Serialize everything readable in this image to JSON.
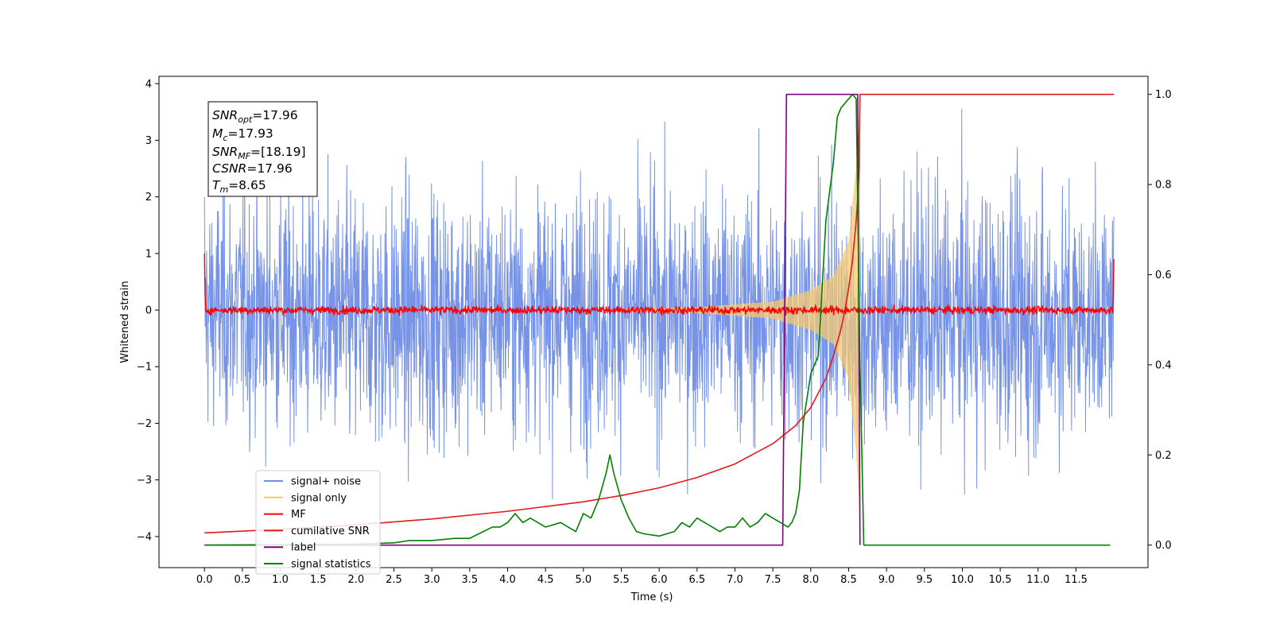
{
  "chart_data": {
    "type": "line",
    "xlabel": "Time (s)",
    "ylabel": "Whitened strain",
    "xlim": [
      -0.6,
      12.45
    ],
    "ylim": [
      -4.55,
      4.13
    ],
    "y2lim": [
      -0.05,
      1.04
    ],
    "x_ticks": [
      "0.0",
      "0.5",
      "1.0",
      "1.5",
      "2.0",
      "2.5",
      "3.0",
      "3.5",
      "4.0",
      "4.5",
      "5.0",
      "5.5",
      "6.0",
      "6.5",
      "7.0",
      "7.5",
      "8.0",
      "8.5",
      "9.0",
      "9.5",
      "10.0",
      "10.5",
      "11.0",
      "11.5"
    ],
    "y_ticks": [
      "4",
      "3",
      "2",
      "1",
      "0",
      "−1",
      "−2",
      "−3",
      "−4"
    ],
    "y2_ticks": [
      "1.0",
      "0.8",
      "0.6",
      "0.4",
      "0.2",
      "0.0"
    ],
    "legend_position": "lower-left",
    "info_box": {
      "snr_opt": {
        "base": "SNR",
        "sub": "opt",
        "value": "=17.96"
      },
      "mc": {
        "base": "M",
        "sub": "c",
        "value": "=17.93"
      },
      "snr_mf": {
        "base": "SNR",
        "sub": "MF",
        "value": "=[18.19]"
      },
      "csnr": {
        "base": "CSNR",
        "value": "=17.96"
      },
      "tm": {
        "base": "T",
        "sub": "m",
        "value": "=8.65"
      }
    },
    "noise_envelope": {
      "t": [
        0.0,
        1.0,
        2.0,
        3.0,
        4.0,
        5.0,
        6.0,
        7.0,
        8.0,
        8.3,
        8.5,
        8.6,
        9.0,
        10.0,
        11.0,
        12.0
      ],
      "upper": [
        2.4,
        2.6,
        2.5,
        2.5,
        2.4,
        2.5,
        2.5,
        2.5,
        2.5,
        2.6,
        2.5,
        2.3,
        2.6,
        2.6,
        2.7,
        2.0
      ],
      "lower": [
        -2.4,
        -2.6,
        -2.9,
        -2.8,
        -2.4,
        -2.6,
        -2.6,
        -2.5,
        -2.7,
        -2.9,
        -3.0,
        -2.8,
        -2.9,
        -2.8,
        -3.0,
        -2.2
      ]
    },
    "series": [
      {
        "name": "signal+ noise",
        "axis": "left",
        "color": "#6f8de6",
        "kind": "noisy",
        "t_range": [
          0.0,
          12.0
        ]
      },
      {
        "name": "signal only",
        "axis": "left",
        "color": "#f5c870",
        "kind": "chirp",
        "t_start": 5.5,
        "t_end": 8.65,
        "amplitudes": [
          [
            5.5,
            0.02
          ],
          [
            6.5,
            0.05
          ],
          [
            7.5,
            0.15
          ],
          [
            8.0,
            0.35
          ],
          [
            8.3,
            0.6
          ],
          [
            8.5,
            1.2
          ],
          [
            8.6,
            2.5
          ],
          [
            8.65,
            3.6
          ]
        ]
      },
      {
        "name": "MF",
        "axis": "left",
        "color": "#ff0000",
        "kind": "mf",
        "t_range": [
          0.0,
          12.0
        ],
        "edge_values": [
          1.0,
          0.9
        ]
      },
      {
        "name": "cumilative SNR",
        "axis": "right",
        "color": "#e31a1a",
        "kind": "line",
        "x": [
          0.0,
          1.0,
          2.0,
          3.0,
          4.0,
          5.0,
          5.5,
          6.0,
          6.5,
          7.0,
          7.5,
          7.8,
          8.0,
          8.2,
          8.3,
          8.4,
          8.45,
          8.5,
          8.55,
          8.6,
          8.62,
          8.64,
          8.65,
          12.0
        ],
        "y": [
          0.027,
          0.035,
          0.045,
          0.058,
          0.075,
          0.096,
          0.11,
          0.127,
          0.15,
          0.18,
          0.225,
          0.265,
          0.305,
          0.37,
          0.42,
          0.48,
          0.52,
          0.57,
          0.63,
          0.72,
          0.77,
          0.84,
          1.0,
          1.0
        ]
      },
      {
        "name": "label",
        "axis": "right",
        "color": "#800080",
        "kind": "line",
        "x": [
          0.0,
          7.63,
          7.68,
          8.62,
          8.65
        ],
        "y": [
          0.0,
          0.0,
          1.0,
          1.0,
          0.0
        ]
      },
      {
        "name": "signal statistics",
        "axis": "right",
        "color": "#008000",
        "kind": "line",
        "x": [
          0.0,
          2.0,
          2.5,
          2.7,
          3.0,
          3.3,
          3.5,
          3.8,
          3.9,
          4.0,
          4.1,
          4.2,
          4.3,
          4.5,
          4.7,
          4.9,
          5.0,
          5.1,
          5.2,
          5.3,
          5.35,
          5.4,
          5.5,
          5.6,
          5.7,
          5.8,
          6.0,
          6.2,
          6.3,
          6.4,
          6.5,
          6.6,
          6.7,
          6.8,
          6.9,
          7.0,
          7.1,
          7.2,
          7.3,
          7.4,
          7.5,
          7.6,
          7.7,
          7.75,
          7.8,
          7.85,
          7.9,
          8.0,
          8.05,
          8.1,
          8.2,
          8.3,
          8.35,
          8.4,
          8.45,
          8.5,
          8.55,
          8.6,
          8.65,
          8.7,
          11.95
        ],
        "y": [
          0.0,
          0.002,
          0.005,
          0.01,
          0.01,
          0.015,
          0.015,
          0.04,
          0.04,
          0.05,
          0.07,
          0.05,
          0.06,
          0.04,
          0.05,
          0.03,
          0.07,
          0.06,
          0.1,
          0.16,
          0.2,
          0.16,
          0.1,
          0.06,
          0.03,
          0.025,
          0.02,
          0.03,
          0.05,
          0.04,
          0.06,
          0.05,
          0.04,
          0.03,
          0.04,
          0.04,
          0.06,
          0.04,
          0.05,
          0.07,
          0.06,
          0.05,
          0.04,
          0.05,
          0.07,
          0.12,
          0.27,
          0.38,
          0.4,
          0.42,
          0.72,
          0.85,
          0.95,
          0.97,
          0.98,
          0.99,
          1.0,
          0.99,
          0.4,
          0.0,
          0.0
        ]
      }
    ],
    "legend": [
      {
        "label": "signal+ noise",
        "color": "#6f8de6"
      },
      {
        "label": "signal only",
        "color": "#f5c870"
      },
      {
        "label": "MF",
        "color": "#ff0000"
      },
      {
        "label": "cumilative SNR",
        "color": "#e31a1a"
      },
      {
        "label": "label",
        "color": "#800080"
      },
      {
        "label": "signal statistics",
        "color": "#008000"
      }
    ]
  }
}
